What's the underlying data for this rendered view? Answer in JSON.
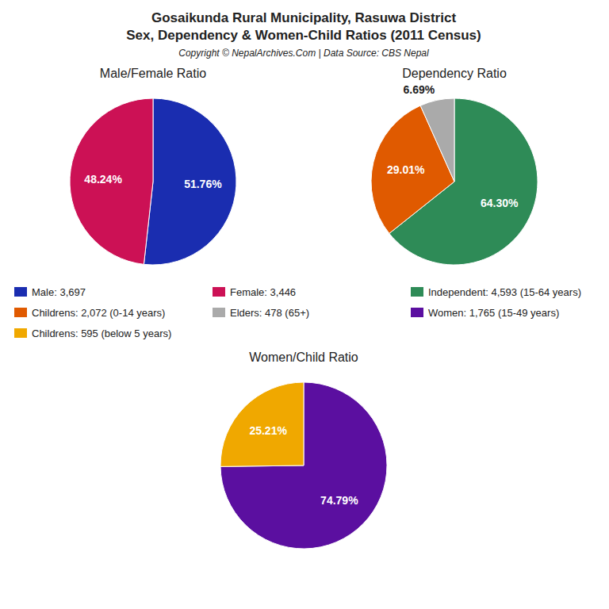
{
  "title": "Gosaikunda Rural Municipality, Rasuwa District",
  "subtitle": "Sex, Dependency & Women-Child Ratios (2011 Census)",
  "annotations": [
    "Copyright © NepalArchives.Com | Data Source: CBS Nepal"
  ],
  "chart_data": [
    {
      "type": "pie",
      "title": "Male/Female Ratio",
      "categories": [
        "Male: 3,697",
        "Female: 3,446"
      ],
      "values": [
        51.76,
        48.24
      ],
      "value_labels": [
        "51.76%",
        "48.24%"
      ],
      "colors": [
        "#1a2db0",
        "#cc1155"
      ],
      "data_labels": true
    },
    {
      "type": "pie",
      "title": "Dependency Ratio",
      "categories": [
        "Independent: 4,593 (15-64 years)",
        "Childrens: 2,072 (0-14 years)",
        "Elders: 478 (65+)"
      ],
      "values": [
        64.3,
        29.01,
        6.69
      ],
      "value_labels": [
        "64.30%",
        "29.01%",
        "6.69%"
      ],
      "colors": [
        "#2e8b57",
        "#e05a00",
        "#aaaaaa"
      ],
      "data_labels": true
    },
    {
      "type": "pie",
      "title": "Women/Child Ratio",
      "categories": [
        "Women: 1,765 (15-49 years)",
        "Childrens: 595 (below 5 years)"
      ],
      "values": [
        74.79,
        25.21
      ],
      "value_labels": [
        "74.79%",
        "25.21%"
      ],
      "colors": [
        "#5b0fa0",
        "#f0a800"
      ],
      "data_labels": true
    }
  ]
}
